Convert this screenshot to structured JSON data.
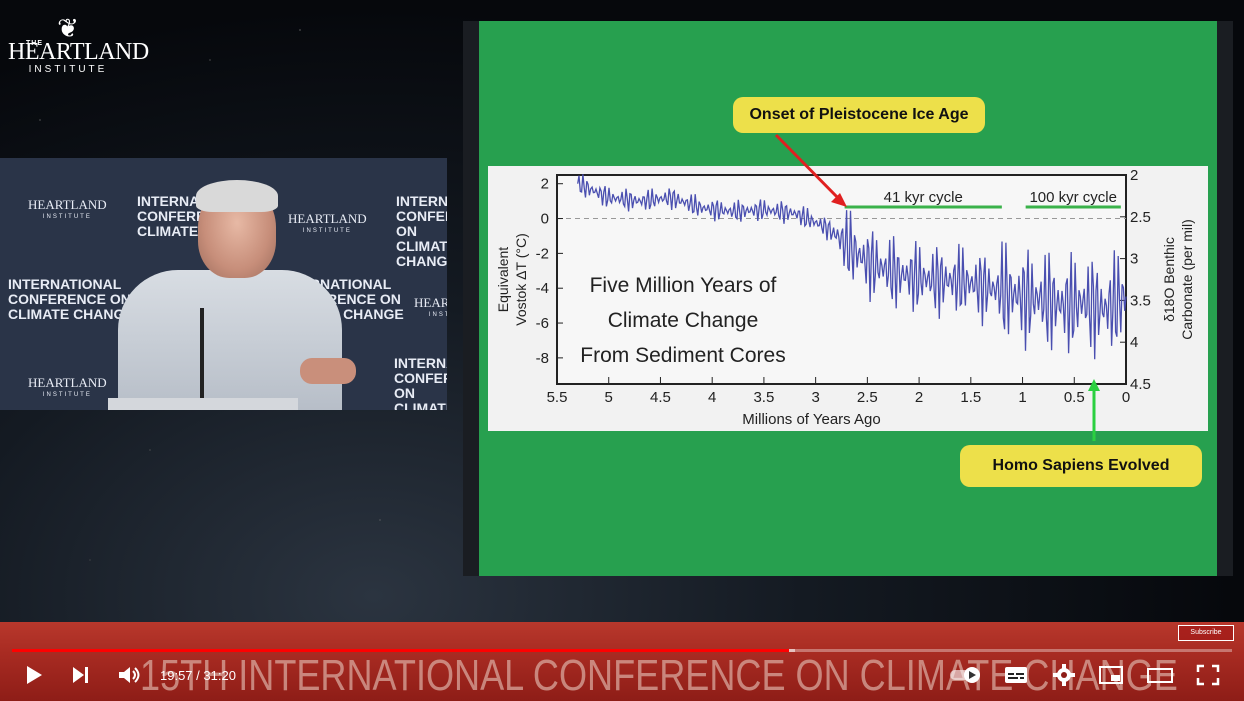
{
  "logo": {
    "the": "THE",
    "name": "HEARTLAND",
    "institute": "INSTITUTE"
  },
  "speaker_backdrop": {
    "title_lines": [
      "INTERNATIONAL",
      "CONFERENCE ON",
      "CLIMATE CHANGE"
    ],
    "logo_name": "HEARTLAND",
    "logo_sub": "INSTITUTE",
    "logo_the": "THE"
  },
  "slide": {
    "callout_top": "Onset of Pleistocene Ice Age",
    "callout_bottom": "Homo Sapiens Evolved",
    "cycle_41": "41 kyr cycle",
    "cycle_100": "100 kyr cycle",
    "overlay_lines": [
      "Five Million Years of",
      "Climate Change",
      "From Sediment Cores"
    ]
  },
  "chart_data": {
    "type": "line",
    "xlabel": "Millions of Years Ago",
    "ylabel_left": [
      "Equivalent",
      "Vostok ΔT (°C)"
    ],
    "ylabel_right": [
      "δ18O Benthic",
      "Carbonate (per mil)"
    ],
    "x_ticks": [
      "5.5",
      "5",
      "4.5",
      "4",
      "3.5",
      "3",
      "2.5",
      "2",
      "1.5",
      "1",
      "0.5",
      "0"
    ],
    "y_ticks_left": [
      "2",
      "0",
      "-2",
      "-4",
      "-6",
      "-8"
    ],
    "y_ticks_right": [
      "2",
      "2.5",
      "3",
      "3.5",
      "4",
      "4.5"
    ],
    "xlim": [
      5.5,
      0
    ],
    "ylim_left": [
      -9.5,
      2.5
    ],
    "ylim_right": [
      4.5,
      2
    ],
    "series": [
      {
        "color": "#4a4fb0",
        "x": [
          5.3,
          5.0,
          4.7,
          4.4,
          4.1,
          3.8,
          3.5,
          3.2,
          2.9,
          2.7,
          2.5,
          2.2,
          1.9,
          1.6,
          1.3,
          1.0,
          0.8,
          0.6,
          0.4,
          0.2,
          0.0
        ],
        "y": [
          2.0,
          1.2,
          1.0,
          1.2,
          0.6,
          0.4,
          0.5,
          0.3,
          -0.5,
          -1.5,
          -2.5,
          -3.2,
          -3.5,
          -3.6,
          -4.0,
          -4.5,
          -4.6,
          -5.0,
          -4.8,
          -5.2,
          -4.5
        ]
      }
    ]
  },
  "player": {
    "time_current": "19:57",
    "time_separator": " / ",
    "time_total": "31:20",
    "progress_fraction": 0.637,
    "buffer_fraction": 0.642,
    "banner_text": "15TH INTERNATIONAL CONFERENCE ON CLIMATE CHANGE",
    "subscribe_label": "Subscribe"
  }
}
